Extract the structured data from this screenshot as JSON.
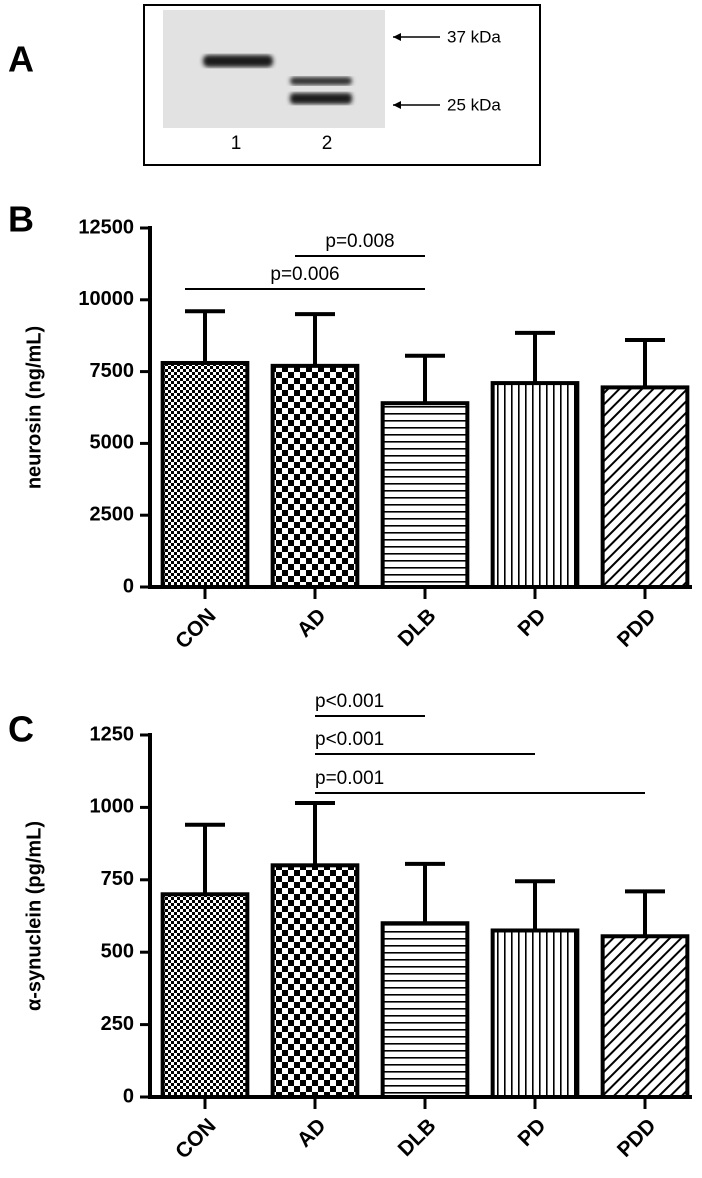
{
  "blot": {
    "panel_label": "A",
    "markers": [
      "37 kDa",
      "25 kDa"
    ],
    "lanes": [
      "1",
      "2"
    ]
  },
  "chart_data": [
    {
      "type": "bar",
      "panel_label": "B",
      "y_label": "neurosin (ng/mL)",
      "categories": [
        "CON",
        "AD",
        "DLB",
        "PD",
        "PDD"
      ],
      "values": [
        7800,
        7700,
        6400,
        7100,
        6950
      ],
      "errors": [
        1800,
        1800,
        1650,
        1750,
        1650
      ],
      "patterns": [
        "fine-checker",
        "checker",
        "horizontal",
        "vertical",
        "diagonal"
      ],
      "ylim": [
        0,
        12500
      ],
      "yticks": [
        0,
        2500,
        5000,
        7500,
        10000,
        12500
      ],
      "annotations": [
        {
          "text": "p=0.008",
          "from": "AD",
          "to": "DLB"
        },
        {
          "text": "p=0.006",
          "from": "CON",
          "to": "DLB"
        }
      ]
    },
    {
      "type": "bar",
      "panel_label": "C",
      "y_label": "α-synuclein (pg/mL)",
      "categories": [
        "CON",
        "AD",
        "DLB",
        "PD",
        "PDD"
      ],
      "values": [
        700,
        800,
        600,
        575,
        555
      ],
      "errors": [
        240,
        215,
        205,
        170,
        155
      ],
      "patterns": [
        "fine-checker",
        "checker",
        "horizontal",
        "vertical",
        "diagonal"
      ],
      "ylim": [
        0,
        1250
      ],
      "yticks": [
        0,
        250,
        500,
        750,
        1000,
        1250
      ],
      "annotations": [
        {
          "text": "p<0.001",
          "from": "AD",
          "to": "DLB"
        },
        {
          "text": "p<0.001",
          "from": "AD",
          "to": "PD"
        },
        {
          "text": "p=0.001",
          "from": "AD",
          "to": "PDD"
        }
      ]
    }
  ]
}
